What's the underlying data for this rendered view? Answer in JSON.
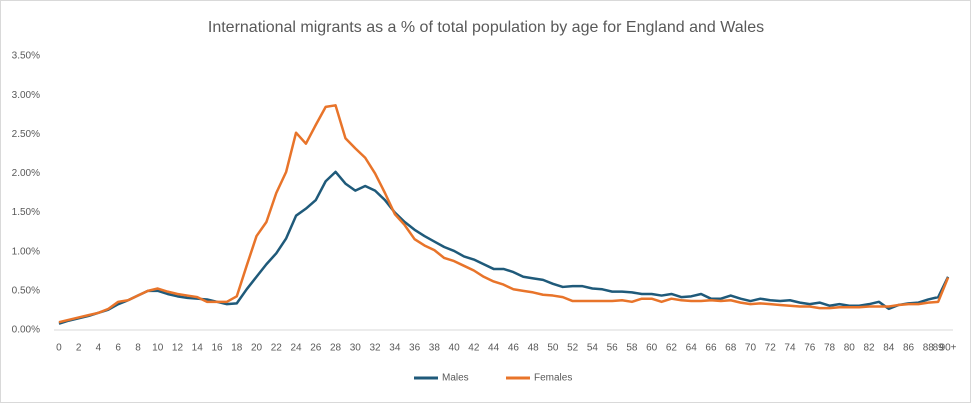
{
  "chart_data": {
    "type": "line",
    "title": "International migrants as a % of total population by age for England and Wales",
    "categories": [
      "0",
      null,
      "2",
      null,
      "4",
      null,
      "6",
      null,
      "8",
      null,
      "10",
      null,
      "12",
      null,
      "14",
      null,
      "16",
      null,
      "18",
      null,
      "20",
      null,
      "22",
      null,
      "24",
      null,
      "26",
      null,
      "28",
      null,
      "30",
      null,
      "32",
      null,
      "34",
      null,
      "36",
      null,
      "38",
      null,
      "40",
      null,
      "42",
      null,
      "44",
      null,
      "46",
      null,
      "48",
      null,
      "50",
      null,
      "52",
      null,
      "54",
      null,
      "56",
      null,
      "58",
      null,
      "60",
      null,
      "62",
      null,
      "64",
      null,
      "66",
      null,
      "68",
      null,
      "70",
      null,
      "72",
      null,
      "74",
      null,
      "76",
      null,
      "78",
      null,
      "80",
      null,
      "82",
      null,
      "84",
      null,
      "86",
      null,
      "88",
      "89",
      "90+"
    ],
    "series": [
      {
        "name": "Males",
        "color": "#1f5a7a",
        "values": [
          0.08,
          0.12,
          0.15,
          0.18,
          0.22,
          0.26,
          0.33,
          0.38,
          0.44,
          0.5,
          0.5,
          0.46,
          0.43,
          0.41,
          0.4,
          0.39,
          0.36,
          0.33,
          0.34,
          0.52,
          0.68,
          0.84,
          0.98,
          1.17,
          1.46,
          1.55,
          1.66,
          1.9,
          2.02,
          1.87,
          1.78,
          1.84,
          1.78,
          1.66,
          1.5,
          1.38,
          1.28,
          1.2,
          1.13,
          1.06,
          1.01,
          0.94,
          0.9,
          0.84,
          0.78,
          0.78,
          0.74,
          0.68,
          0.66,
          0.64,
          0.59,
          0.55,
          0.56,
          0.56,
          0.53,
          0.52,
          0.49,
          0.49,
          0.48,
          0.46,
          0.46,
          0.44,
          0.46,
          0.42,
          0.43,
          0.46,
          0.4,
          0.4,
          0.44,
          0.4,
          0.37,
          0.4,
          0.38,
          0.37,
          0.38,
          0.35,
          0.33,
          0.35,
          0.31,
          0.33,
          0.31,
          0.31,
          0.33,
          0.36,
          0.27,
          0.32,
          0.34,
          0.35,
          0.39,
          0.42,
          0.68
        ]
      },
      {
        "name": "Females",
        "color": "#e8742a",
        "values": [
          0.1,
          0.13,
          0.16,
          0.19,
          0.22,
          0.27,
          0.36,
          0.38,
          0.44,
          0.5,
          0.53,
          0.49,
          0.46,
          0.44,
          0.42,
          0.36,
          0.36,
          0.36,
          0.43,
          0.82,
          1.2,
          1.38,
          1.75,
          2.02,
          2.52,
          2.38,
          2.62,
          2.85,
          2.87,
          2.45,
          2.32,
          2.2,
          2.0,
          1.75,
          1.48,
          1.34,
          1.16,
          1.08,
          1.02,
          0.92,
          0.88,
          0.82,
          0.76,
          0.68,
          0.62,
          0.58,
          0.52,
          0.5,
          0.48,
          0.45,
          0.44,
          0.42,
          0.37,
          0.37,
          0.37,
          0.37,
          0.37,
          0.38,
          0.36,
          0.4,
          0.4,
          0.36,
          0.4,
          0.38,
          0.37,
          0.37,
          0.38,
          0.37,
          0.38,
          0.35,
          0.33,
          0.34,
          0.33,
          0.32,
          0.31,
          0.3,
          0.3,
          0.28,
          0.28,
          0.29,
          0.29,
          0.29,
          0.3,
          0.3,
          0.3,
          0.32,
          0.33,
          0.33,
          0.35,
          0.36,
          0.67
        ]
      }
    ],
    "ylim": [
      0,
      3.5
    ],
    "yticks": [
      {
        "value": 0,
        "label": "0.00%"
      },
      {
        "value": 0.5,
        "label": "0.50%"
      },
      {
        "value": 1,
        "label": "1.00%"
      },
      {
        "value": 1.5,
        "label": "1.50%"
      },
      {
        "value": 2,
        "label": "2.00%"
      },
      {
        "value": 2.5,
        "label": "2.50%"
      },
      {
        "value": 3,
        "label": "3.00%"
      },
      {
        "value": 3.5,
        "label": "3.50%"
      }
    ],
    "grid": false,
    "legend": "bottom"
  }
}
